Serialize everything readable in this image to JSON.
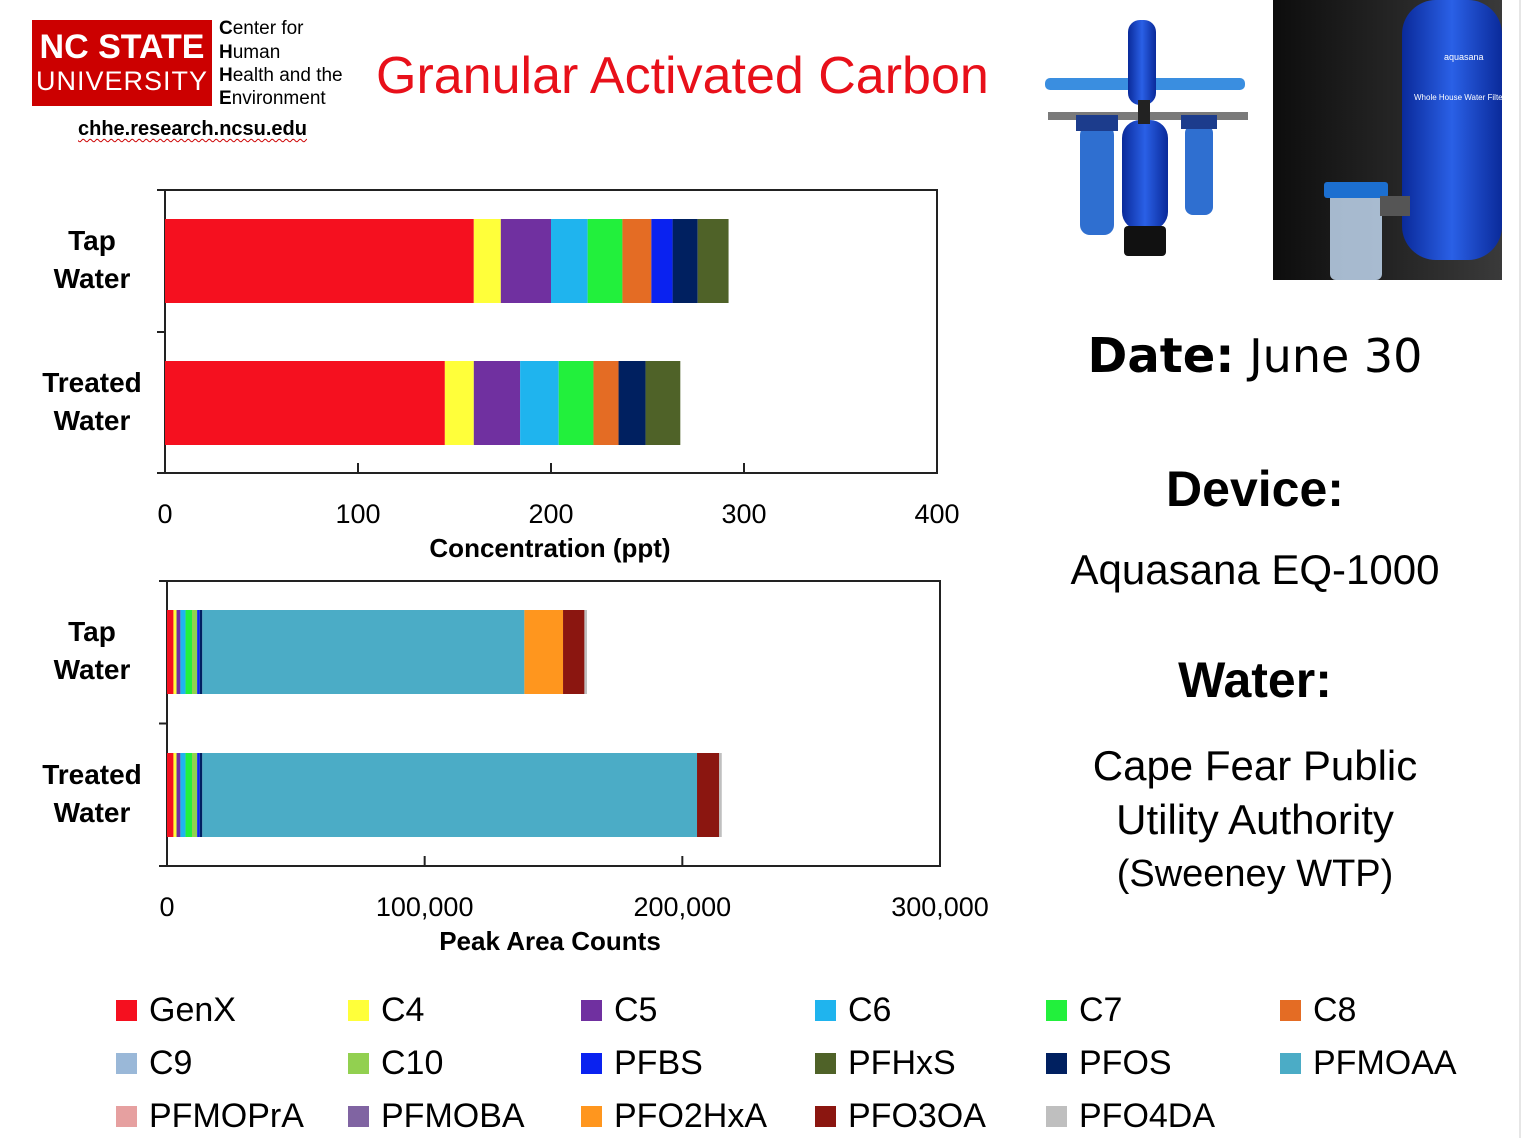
{
  "header": {
    "logo_line1": "NC STATE",
    "logo_line2": "UNIVERSITY",
    "center_lines": [
      {
        "initial": "C",
        "rest": "enter for"
      },
      {
        "initial": "H",
        "rest": "uman"
      },
      {
        "initial": "H",
        "rest": "ealth and the"
      },
      {
        "initial": "E",
        "rest": "nvironment"
      }
    ],
    "url": "chhe.research.ncsu.edu",
    "title": "Granular Activated Carbon",
    "title_color": "#e8101a",
    "logo_color": "#cc0000"
  },
  "photos": [
    {
      "icon": "whole-house-filter-system-photo"
    },
    {
      "icon": "filter-closeup-photo"
    }
  ],
  "photo_text": {
    "brand": "aquasana",
    "product": "Whole House Water Filter"
  },
  "info": {
    "date_label": "Date:",
    "date_value": "June 30",
    "device_label": "Device:",
    "device_value": "Aquasana EQ-1000",
    "water_label": "Water:",
    "water_lines": [
      "Cape Fear Public",
      "Utility Authority",
      "(Sweeney WTP)"
    ]
  },
  "colors": {
    "GenX": "#f5101f",
    "C4": "#ffff3a",
    "C5": "#7030a0",
    "C6": "#1fb4ee",
    "C7": "#22f03c",
    "C8": "#e46c24",
    "C9": "#9ab8d8",
    "C10": "#92d050",
    "PFBS": "#0a22f0",
    "PFHxS": "#4f6228",
    "PFOS": "#002060",
    "PFMOAA": "#4bacc6",
    "PFMOPrA": "#e6a0a0",
    "PFMOBA": "#8064a2",
    "PFO2HxA": "#ff961e",
    "PFO3OA": "#8b1610",
    "PFO4DA": "#bfbfbf"
  },
  "chart_data": [
    {
      "type": "bar",
      "orientation": "horizontal",
      "stacked": true,
      "categories": [
        [
          "Tap",
          "Water"
        ],
        [
          "Treated",
          "Water"
        ]
      ],
      "series": [
        {
          "name": "GenX",
          "values": [
            160,
            145
          ]
        },
        {
          "name": "C4",
          "values": [
            14,
            15
          ]
        },
        {
          "name": "C5",
          "values": [
            26,
            24
          ]
        },
        {
          "name": "C6",
          "values": [
            19,
            20
          ]
        },
        {
          "name": "C7",
          "values": [
            18,
            18
          ]
        },
        {
          "name": "C8",
          "values": [
            15,
            13
          ]
        },
        {
          "name": "PFBS",
          "values": [
            11,
            0
          ]
        },
        {
          "name": "PFOS",
          "values": [
            13,
            14
          ]
        },
        {
          "name": "PFHxS",
          "values": [
            16,
            18
          ]
        }
      ],
      "xlabel": "Concentration (ppt)",
      "xlim": [
        0,
        400
      ],
      "xticks": [
        0,
        100,
        200,
        300,
        400
      ],
      "xtick_labels": [
        "0",
        "100",
        "200",
        "300",
        "400"
      ]
    },
    {
      "type": "bar",
      "orientation": "horizontal",
      "stacked": true,
      "categories": [
        [
          "Tap",
          "Water"
        ],
        [
          "Treated",
          "Water"
        ]
      ],
      "series": [
        {
          "name": "GenX",
          "values": [
            2500,
            2500
          ]
        },
        {
          "name": "C4",
          "values": [
            1200,
            1200
          ]
        },
        {
          "name": "C5",
          "values": [
            1500,
            1500
          ]
        },
        {
          "name": "C6",
          "values": [
            2000,
            2000
          ]
        },
        {
          "name": "C7",
          "values": [
            2500,
            2500
          ]
        },
        {
          "name": "C10",
          "values": [
            2000,
            2000
          ]
        },
        {
          "name": "PFBS",
          "values": [
            1000,
            1000
          ]
        },
        {
          "name": "PFOS",
          "values": [
            1000,
            1000
          ]
        },
        {
          "name": "PFMOAA",
          "values": [
            125000,
            192000
          ]
        },
        {
          "name": "PFO2HxA",
          "values": [
            15000,
            0
          ]
        },
        {
          "name": "PFO3OA",
          "values": [
            8300,
            8600
          ]
        },
        {
          "name": "PFO4DA",
          "values": [
            1000,
            1000
          ]
        }
      ],
      "xlabel": "Peak Area Counts",
      "xlim": [
        0,
        300000
      ],
      "xticks": [
        0,
        100000,
        200000,
        300000
      ],
      "xtick_labels": [
        "0",
        "100,000",
        "200,000",
        "300,000"
      ]
    }
  ],
  "legend": [
    [
      "GenX",
      "C4",
      "C5",
      "C6",
      "C7",
      "C8"
    ],
    [
      "C9",
      "C10",
      "PFBS",
      "PFHxS",
      "PFOS",
      "PFMOAA"
    ],
    [
      "PFMOPrA",
      "PFMOBA",
      "PFO2HxA",
      "PFO3OA",
      "PFO4DA"
    ]
  ]
}
